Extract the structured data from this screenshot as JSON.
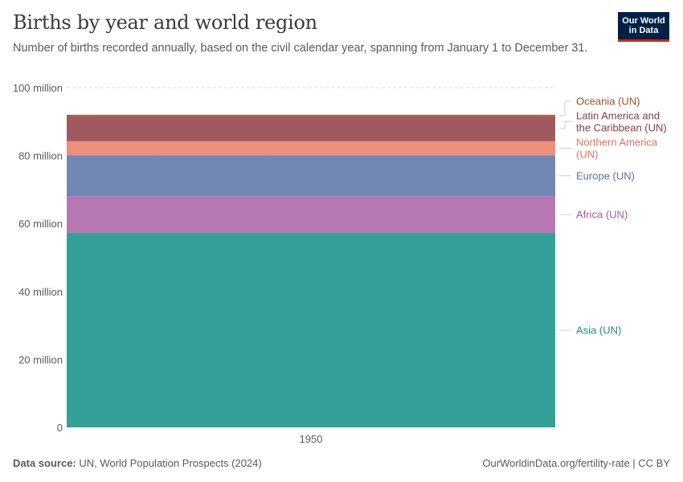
{
  "header": {
    "title": "Births by year and world region",
    "subtitle": "Number of births recorded annually, based on the civil calendar year, spanning from January 1 to December 31."
  },
  "logo": {
    "line1": "Our World",
    "line2": "in Data"
  },
  "footer": {
    "source_label": "Data source:",
    "source_text": "UN, World Population Prospects (2024)",
    "url_text": "OurWorldinData.org/fertility-rate | CC BY"
  },
  "colors": {
    "Asia (UN)": "#34a098",
    "Africa (UN)": "#b578b3",
    "Europe (UN)": "#7088b3",
    "Northern America (UN)": "#ee8e7c",
    "Latin America and the Caribbean (UN)": "#a05a5f",
    "Oceania (UN)": "#a5663a"
  },
  "chart_data": {
    "type": "area",
    "x": [
      1950
    ],
    "categories": [
      "1950"
    ],
    "ylim": [
      0,
      100000000
    ],
    "yticks": [
      0,
      20000000,
      40000000,
      60000000,
      80000000,
      100000000
    ],
    "ytick_labels": [
      "0",
      "20 million",
      "40 million",
      "60 million",
      "80 million",
      "100 million"
    ],
    "grid": true,
    "stacked": true,
    "legend_placement": "right",
    "series": [
      {
        "name": "Asia (UN)",
        "values": [
          57200000
        ]
      },
      {
        "name": "Africa (UN)",
        "values": [
          10800000
        ]
      },
      {
        "name": "Europe (UN)",
        "values": [
          12100000
        ]
      },
      {
        "name": "Northern America (UN)",
        "values": [
          4100000
        ]
      },
      {
        "name": "Latin America and the Caribbean (UN)",
        "values": [
          7500000
        ]
      },
      {
        "name": "Oceania (UN)",
        "values": [
          300000
        ]
      }
    ],
    "series_labels": [
      [
        "Asia (UN)"
      ],
      [
        "Africa (UN)"
      ],
      [
        "Europe (UN)"
      ],
      [
        "Northern America",
        "(UN)"
      ],
      [
        "Latin America and",
        "the Caribbean (UN)"
      ],
      [
        "Oceania (UN)"
      ]
    ],
    "label_colors": [
      "#2a8a82",
      "#a75aa5",
      "#5a72a0",
      "#e2735f",
      "#8b3b45",
      "#9a5428"
    ]
  }
}
